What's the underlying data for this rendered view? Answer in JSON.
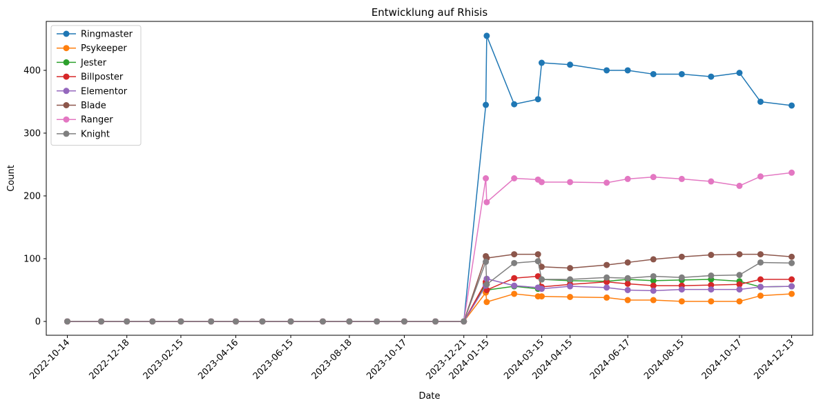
{
  "chart_data": {
    "type": "line",
    "title": "Entwicklung auf Rhisis",
    "xlabel": "Date",
    "ylabel": "Count",
    "x_tick_labels": [
      "2022-10-14",
      "2022-12-18",
      "2023-02-15",
      "2023-04-16",
      "2023-06-15",
      "2023-08-18",
      "2023-10-17",
      "2023-12-21",
      "2024-01-15",
      "2024-03-15",
      "2024-04-15",
      "2024-06-17",
      "2024-08-15",
      "2024-10-17",
      "2024-12-13"
    ],
    "y_ticks": [
      0,
      100,
      200,
      300,
      400
    ],
    "ylim": [
      -22,
      478
    ],
    "xlim": [
      "2022-09-21",
      "2025-01-05"
    ],
    "legend_position": "top-left",
    "grid": false,
    "x": [
      "2022-10-14",
      "2022-11-20",
      "2022-12-18",
      "2023-01-15",
      "2023-02-15",
      "2023-03-20",
      "2023-04-16",
      "2023-05-15",
      "2023-06-15",
      "2023-07-20",
      "2023-08-18",
      "2023-09-17",
      "2023-10-17",
      "2023-11-20",
      "2023-12-21",
      "2024-01-14",
      "2024-01-15",
      "2024-02-14",
      "2024-03-11",
      "2024-03-15",
      "2024-04-15",
      "2024-05-25",
      "2024-06-17",
      "2024-07-15",
      "2024-08-15",
      "2024-09-16",
      "2024-10-17",
      "2024-11-09",
      "2024-12-13"
    ],
    "series": [
      {
        "name": "Ringmaster",
        "color": "#1f77b4",
        "values": [
          0,
          0,
          0,
          0,
          0,
          0,
          0,
          0,
          0,
          0,
          0,
          0,
          0,
          0,
          0,
          345,
          455,
          346,
          354,
          412,
          409,
          400,
          400,
          394,
          394,
          390,
          396,
          350,
          344
        ]
      },
      {
        "name": "Psykeeper",
        "color": "#ff7f0e",
        "values": [
          0,
          0,
          0,
          0,
          0,
          0,
          0,
          0,
          0,
          0,
          0,
          0,
          0,
          0,
          0,
          46,
          31,
          44,
          40,
          40,
          39,
          38,
          34,
          34,
          32,
          32,
          32,
          41,
          44
        ]
      },
      {
        "name": "Jester",
        "color": "#2ca02c",
        "values": [
          0,
          0,
          0,
          0,
          0,
          0,
          0,
          0,
          0,
          0,
          0,
          0,
          0,
          0,
          0,
          60,
          50,
          56,
          52,
          67,
          65,
          64,
          67,
          65,
          66,
          67,
          64,
          55,
          56
        ]
      },
      {
        "name": "Billposter",
        "color": "#d62728",
        "values": [
          0,
          0,
          0,
          0,
          0,
          0,
          0,
          0,
          0,
          0,
          0,
          0,
          0,
          0,
          0,
          63,
          50,
          69,
          72,
          55,
          59,
          63,
          60,
          57,
          57,
          58,
          59,
          67,
          67
        ]
      },
      {
        "name": "Elementor",
        "color": "#9467bd",
        "values": [
          0,
          0,
          0,
          0,
          0,
          0,
          0,
          0,
          0,
          0,
          0,
          0,
          0,
          0,
          0,
          57,
          68,
          57,
          54,
          52,
          56,
          54,
          50,
          49,
          51,
          51,
          51,
          55,
          56
        ]
      },
      {
        "name": "Blade",
        "color": "#8c564b",
        "values": [
          0,
          0,
          0,
          0,
          0,
          0,
          0,
          0,
          0,
          0,
          0,
          0,
          0,
          0,
          0,
          104,
          101,
          107,
          107,
          87,
          85,
          90,
          94,
          99,
          103,
          106,
          107,
          107,
          103
        ]
      },
      {
        "name": "Ranger",
        "color": "#e377c2",
        "values": [
          0,
          0,
          0,
          0,
          0,
          0,
          0,
          0,
          0,
          0,
          0,
          0,
          0,
          0,
          0,
          228,
          190,
          228,
          226,
          222,
          222,
          221,
          227,
          230,
          227,
          223,
          216,
          231,
          237
        ]
      },
      {
        "name": "Knight",
        "color": "#7f7f7f",
        "values": [
          0,
          0,
          0,
          0,
          0,
          0,
          0,
          0,
          0,
          0,
          0,
          0,
          0,
          0,
          0,
          95,
          59,
          93,
          96,
          67,
          67,
          70,
          69,
          72,
          70,
          73,
          74,
          94,
          93
        ]
      }
    ]
  }
}
